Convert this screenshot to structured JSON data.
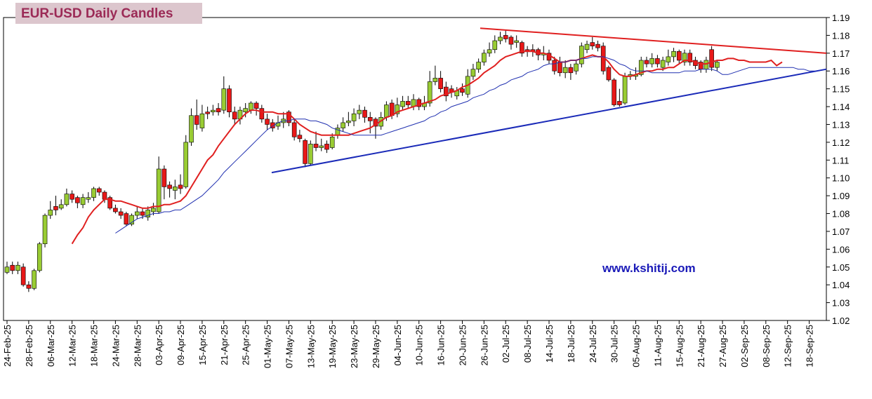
{
  "chart_data": {
    "type": "candlestick",
    "title": "EUR-USD Daily  Candles",
    "annotation": "www.kshitij.com",
    "categories": [
      "24-Feb-25",
      null,
      null,
      null,
      "28-Feb-25",
      null,
      null,
      null,
      "06-Mar-25",
      null,
      null,
      null,
      "12-Mar-25",
      null,
      null,
      null,
      "18-Mar-25",
      null,
      null,
      null,
      "24-Mar-25",
      null,
      null,
      null,
      "28-Mar-25",
      null,
      null,
      null,
      "03-Apr-25",
      null,
      null,
      null,
      "09-Apr-25",
      null,
      null,
      null,
      "15-Apr-25",
      null,
      null,
      null,
      "21-Apr-25",
      null,
      null,
      null,
      "25-Apr-25",
      null,
      null,
      null,
      "01-May-25",
      null,
      null,
      null,
      "07-May-25",
      null,
      null,
      null,
      "13-May-25",
      null,
      null,
      null,
      "19-May-25",
      null,
      null,
      null,
      "23-May-25",
      null,
      null,
      null,
      "29-May-25",
      null,
      null,
      null,
      "04-Jun-25",
      null,
      null,
      null,
      "10-Jun-25",
      null,
      null,
      null,
      "16-Jun-25",
      null,
      null,
      null,
      "20-Jun-25",
      null,
      null,
      null,
      "26-Jun-25",
      null,
      null,
      null,
      "02-Jul-25",
      null,
      null,
      null,
      "08-Jul-25",
      null,
      null,
      null,
      "14-Jul-25",
      null,
      null,
      null,
      "18-Jul-25",
      null,
      null,
      null,
      "24-Jul-25",
      null,
      null,
      null,
      "30-Jul-25",
      null,
      null,
      null,
      "05-Aug-25",
      null,
      null,
      null,
      "11-Aug-25",
      null,
      null,
      null,
      "15-Aug-25",
      null,
      null,
      null,
      "21-Aug-25",
      null,
      null,
      null,
      "27-Aug-25",
      null,
      null,
      null,
      "02-Sep-25",
      null,
      null,
      null,
      "08-Sep-25",
      null,
      null,
      null,
      "12-Sep-25",
      null,
      null,
      null,
      "18-Sep-25",
      null,
      null,
      null
    ],
    "open": [
      1.047,
      1.051,
      1.048,
      1.05,
      1.04,
      1.038,
      1.048,
      1.063,
      1.079,
      1.084,
      1.083,
      1.085,
      1.091,
      1.089,
      1.085,
      1.088,
      1.089,
      1.094,
      1.092,
      1.089,
      1.083,
      1.081,
      1.08,
      1.074,
      1.079,
      1.081,
      1.078,
      1.081,
      1.081,
      1.105,
      1.096,
      1.093,
      1.096,
      1.095,
      1.12,
      1.135,
      1.128,
      1.137,
      1.137,
      1.139,
      1.138,
      1.15,
      1.137,
      1.133,
      1.137,
      1.138,
      1.142,
      1.139,
      1.133,
      1.131,
      1.129,
      1.131,
      1.137,
      1.131,
      1.124,
      1.121,
      1.108,
      1.119,
      1.117,
      1.119,
      1.117,
      1.124,
      1.128,
      1.131,
      1.132,
      1.136,
      1.138,
      1.134,
      1.133,
      1.129,
      1.134,
      1.142,
      1.136,
      1.14,
      1.143,
      1.14,
      1.144,
      1.14,
      1.142,
      1.154,
      1.156,
      1.151,
      1.15,
      1.146,
      1.15,
      1.147,
      1.157,
      1.161,
      1.165,
      1.17,
      1.172,
      1.177,
      1.18,
      1.179,
      1.176,
      1.176,
      1.172,
      1.172,
      1.172,
      1.169,
      1.17,
      1.166,
      1.165,
      1.159,
      1.162,
      1.16,
      1.164,
      1.172,
      1.176,
      1.175,
      1.174,
      1.162,
      1.155,
      1.143,
      1.142,
      1.157,
      1.157,
      1.158,
      1.166,
      1.164,
      1.167,
      1.162,
      1.165,
      1.168,
      1.171,
      1.165,
      1.17,
      1.166,
      1.165,
      1.161,
      1.172,
      1.162,
      null,
      null,
      null,
      null,
      null,
      null,
      null,
      null,
      null,
      null,
      null,
      null,
      null,
      null,
      null,
      null,
      null,
      null,
      null,
      null
    ],
    "high": [
      1.053,
      1.053,
      1.053,
      1.052,
      1.042,
      1.049,
      1.064,
      1.08,
      1.087,
      1.09,
      1.088,
      1.094,
      1.093,
      1.09,
      1.091,
      1.092,
      1.095,
      1.095,
      1.093,
      1.09,
      1.085,
      1.083,
      1.081,
      1.08,
      1.084,
      1.083,
      1.084,
      1.086,
      1.112,
      1.107,
      1.098,
      1.099,
      1.102,
      1.124,
      1.139,
      1.144,
      1.141,
      1.14,
      1.141,
      1.142,
      1.157,
      1.152,
      1.14,
      1.14,
      1.142,
      1.143,
      1.143,
      1.141,
      1.136,
      1.133,
      1.135,
      1.137,
      1.138,
      1.133,
      1.127,
      1.122,
      1.121,
      1.126,
      1.122,
      1.121,
      1.125,
      1.13,
      1.134,
      1.137,
      1.139,
      1.141,
      1.14,
      1.137,
      1.134,
      1.137,
      1.143,
      1.144,
      1.145,
      1.146,
      1.146,
      1.147,
      1.145,
      1.146,
      1.16,
      1.163,
      1.16,
      1.154,
      1.152,
      1.151,
      1.153,
      1.161,
      1.164,
      1.167,
      1.172,
      1.176,
      1.18,
      1.182,
      1.183,
      1.18,
      1.18,
      1.177,
      1.174,
      1.175,
      1.173,
      1.174,
      1.172,
      1.168,
      1.168,
      1.166,
      1.164,
      1.166,
      1.176,
      1.177,
      1.179,
      1.177,
      1.176,
      1.163,
      1.156,
      1.15,
      1.159,
      1.16,
      1.162,
      1.168,
      1.168,
      1.17,
      1.169,
      1.168,
      1.172,
      1.173,
      1.172,
      1.172,
      1.172,
      1.168,
      1.166,
      1.168,
      1.174,
      1.166,
      null,
      null,
      null,
      null,
      null,
      null,
      null,
      null,
      null,
      null,
      null,
      null,
      null,
      null,
      null,
      null,
      null,
      null,
      null,
      null
    ],
    "low": [
      1.046,
      1.046,
      1.046,
      1.039,
      1.036,
      1.037,
      1.047,
      1.061,
      1.077,
      1.079,
      1.082,
      1.084,
      1.086,
      1.083,
      1.083,
      1.086,
      1.087,
      1.09,
      1.086,
      1.082,
      1.08,
      1.077,
      1.073,
      1.073,
      1.077,
      1.077,
      1.076,
      1.079,
      1.08,
      1.088,
      1.089,
      1.088,
      1.091,
      1.094,
      1.118,
      1.127,
      1.126,
      1.133,
      1.135,
      1.135,
      1.136,
      1.134,
      1.13,
      1.13,
      1.134,
      1.136,
      1.135,
      1.131,
      1.127,
      1.126,
      1.127,
      1.128,
      1.129,
      1.121,
      1.12,
      1.106,
      1.107,
      1.115,
      1.115,
      1.114,
      1.116,
      1.122,
      1.126,
      1.129,
      1.129,
      1.133,
      1.131,
      1.125,
      1.122,
      1.127,
      1.132,
      1.133,
      1.134,
      1.138,
      1.139,
      1.138,
      1.138,
      1.138,
      1.14,
      1.152,
      1.148,
      1.143,
      1.145,
      1.144,
      1.146,
      1.145,
      1.155,
      1.159,
      1.163,
      1.168,
      1.17,
      1.175,
      1.176,
      1.172,
      1.173,
      1.168,
      1.168,
      1.168,
      1.166,
      1.166,
      1.164,
      1.158,
      1.157,
      1.156,
      1.155,
      1.158,
      1.162,
      1.17,
      1.172,
      1.171,
      1.158,
      1.154,
      1.14,
      1.14,
      1.141,
      1.155,
      1.155,
      1.157,
      1.162,
      1.162,
      1.162,
      1.16,
      1.163,
      1.165,
      1.164,
      1.163,
      1.163,
      1.161,
      1.159,
      1.159,
      1.16,
      1.16,
      null,
      null,
      null,
      null,
      null,
      null,
      null,
      null,
      null,
      null,
      null,
      null,
      null,
      null,
      null,
      null,
      null,
      null,
      null,
      null
    ],
    "close": [
      1.05,
      1.048,
      1.051,
      1.04,
      1.038,
      1.048,
      1.063,
      1.079,
      1.082,
      1.082,
      1.085,
      1.091,
      1.088,
      1.086,
      1.089,
      1.089,
      1.094,
      1.092,
      1.088,
      1.083,
      1.081,
      1.079,
      1.074,
      1.079,
      1.081,
      1.079,
      1.082,
      1.083,
      1.105,
      1.095,
      1.094,
      1.095,
      1.094,
      1.12,
      1.135,
      1.13,
      1.136,
      1.136,
      1.138,
      1.137,
      1.15,
      1.137,
      1.133,
      1.138,
      1.139,
      1.142,
      1.139,
      1.133,
      1.13,
      1.128,
      1.131,
      1.133,
      1.131,
      1.123,
      1.122,
      1.108,
      1.119,
      1.117,
      1.118,
      1.116,
      1.123,
      1.128,
      1.131,
      1.132,
      1.136,
      1.138,
      1.134,
      1.132,
      1.129,
      1.134,
      1.141,
      1.135,
      1.141,
      1.143,
      1.141,
      1.144,
      1.14,
      1.142,
      1.154,
      1.156,
      1.15,
      1.146,
      1.148,
      1.149,
      1.148,
      1.157,
      1.161,
      1.165,
      1.17,
      1.172,
      1.177,
      1.179,
      1.178,
      1.175,
      1.177,
      1.17,
      1.171,
      1.171,
      1.169,
      1.17,
      1.166,
      1.16,
      1.159,
      1.162,
      1.159,
      1.164,
      1.174,
      1.175,
      1.174,
      1.173,
      1.16,
      1.155,
      1.141,
      1.141,
      1.157,
      1.158,
      1.158,
      1.166,
      1.164,
      1.167,
      1.164,
      1.166,
      1.168,
      1.171,
      1.166,
      1.17,
      1.165,
      1.163,
      1.161,
      1.166,
      1.162,
      1.165,
      null,
      null,
      null,
      null,
      null,
      null,
      null,
      null,
      null,
      null,
      null,
      null,
      null,
      null,
      null,
      null,
      null,
      null,
      null,
      null
    ],
    "up_color": "#99cc33",
    "down_color": "#e81818",
    "series": [
      {
        "color": "#e02020",
        "values": [
          null,
          null,
          null,
          null,
          null,
          null,
          null,
          null,
          null,
          null,
          null,
          null,
          1.063,
          1.068,
          1.072,
          1.078,
          1.082,
          1.085,
          1.088,
          1.088,
          1.087,
          1.087,
          1.086,
          1.085,
          1.084,
          1.083,
          1.083,
          1.084,
          1.084,
          1.085,
          1.085,
          1.086,
          1.087,
          1.09,
          1.095,
          1.1,
          1.105,
          1.11,
          1.113,
          1.118,
          1.122,
          1.126,
          1.13,
          1.133,
          1.136,
          1.138,
          1.138,
          1.137,
          1.137,
          1.137,
          1.136,
          1.136,
          1.136,
          1.133,
          1.13,
          1.128,
          1.126,
          1.125,
          1.124,
          1.124,
          1.124,
          1.124,
          1.124,
          1.124,
          1.125,
          1.126,
          1.127,
          1.128,
          1.13,
          1.132,
          1.134,
          1.135,
          1.137,
          1.138,
          1.139,
          1.14,
          1.141,
          1.142,
          1.143,
          1.144,
          1.146,
          1.147,
          1.148,
          1.149,
          1.151,
          1.152,
          1.154,
          1.156,
          1.159,
          1.161,
          1.163,
          1.166,
          1.168,
          1.169,
          1.17,
          1.171,
          1.171,
          1.171,
          1.17,
          1.17,
          1.169,
          1.167,
          1.165,
          1.165,
          1.166,
          1.166,
          1.167,
          1.168,
          1.169,
          1.168,
          1.168,
          1.165,
          1.161,
          1.158,
          1.157,
          1.157,
          1.158,
          1.159,
          1.16,
          1.16,
          1.161,
          1.161,
          1.162,
          1.162,
          1.164,
          1.166,
          1.166,
          1.165,
          1.164,
          1.164,
          1.165,
          1.166,
          1.166,
          1.167,
          1.167,
          1.166,
          1.166,
          1.165,
          1.165,
          1.165,
          1.165,
          1.166,
          1.163,
          1.165,
          null,
          null,
          null,
          null,
          null,
          null,
          null,
          null
        ]
      },
      {
        "color": "#2030b0",
        "values": [
          null,
          null,
          null,
          null,
          null,
          null,
          null,
          null,
          null,
          null,
          null,
          null,
          null,
          null,
          null,
          null,
          null,
          null,
          null,
          null,
          1.069,
          1.071,
          1.073,
          1.075,
          1.077,
          1.078,
          1.079,
          1.08,
          1.08,
          1.081,
          1.081,
          1.082,
          1.082,
          1.084,
          1.086,
          1.088,
          1.09,
          1.093,
          1.096,
          1.099,
          1.103,
          1.106,
          1.109,
          1.112,
          1.115,
          1.118,
          1.121,
          1.124,
          1.127,
          1.129,
          1.131,
          1.132,
          1.132,
          1.133,
          1.133,
          1.133,
          1.132,
          1.132,
          1.131,
          1.13,
          1.128,
          1.127,
          1.126,
          1.125,
          1.124,
          1.124,
          1.124,
          1.124,
          1.124,
          1.124,
          1.125,
          1.126,
          1.127,
          1.128,
          1.129,
          1.13,
          1.131,
          1.132,
          1.134,
          1.135,
          1.137,
          1.138,
          1.14,
          1.141,
          1.142,
          1.143,
          1.145,
          1.146,
          1.147,
          1.149,
          1.15,
          1.152,
          1.153,
          1.155,
          1.156,
          1.157,
          1.159,
          1.16,
          1.161,
          1.163,
          1.164,
          1.164,
          1.165,
          1.165,
          1.166,
          1.166,
          1.167,
          1.167,
          1.168,
          1.168,
          1.168,
          1.167,
          1.166,
          1.164,
          1.163,
          1.161,
          1.16,
          1.16,
          1.16,
          1.159,
          1.159,
          1.159,
          1.159,
          1.159,
          1.159,
          1.16,
          1.16,
          1.16,
          1.161,
          1.161,
          1.161,
          1.16,
          1.158,
          1.158,
          1.159,
          1.16,
          1.161,
          1.162,
          1.162,
          1.162,
          1.162,
          1.162,
          1.162,
          1.162,
          1.162,
          1.162,
          1.161,
          1.161,
          1.16,
          1.16,
          null,
          null
        ]
      }
    ],
    "trendlines": [
      {
        "color": "#e02020",
        "values": [
          1.184,
          1.17
        ]
      },
      {
        "color": "#1a2ab8",
        "values": [
          1.103,
          1.161
        ]
      }
    ],
    "ylim": [
      1.02,
      1.19
    ],
    "yticks": [
      1.02,
      1.03,
      1.04,
      1.05,
      1.06,
      1.07,
      1.08,
      1.09,
      {
        "value": 1.1,
        "label": "1.10"
      },
      1.11,
      1.12,
      1.13,
      1.14,
      1.15,
      1.16,
      1.17,
      1.18,
      1.19
    ],
    "grid": false
  }
}
